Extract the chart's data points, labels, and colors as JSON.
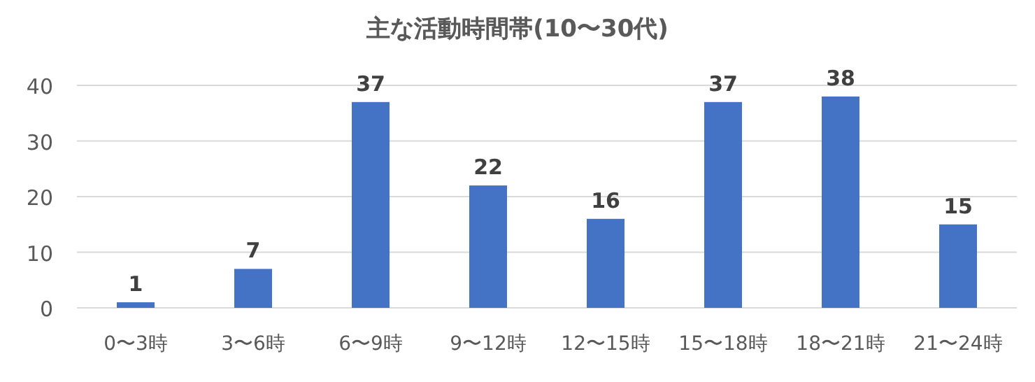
{
  "chart_data": {
    "type": "bar",
    "title": "主な活動時間帯(10〜30代)",
    "categories": [
      "0〜3時",
      "3〜6時",
      "6〜9時",
      "9〜12時",
      "12〜15時",
      "15〜18時",
      "18〜21時",
      "21〜24時"
    ],
    "values": [
      1,
      7,
      37,
      22,
      16,
      37,
      38,
      15
    ],
    "color": "#4472c4",
    "ylim": [
      0,
      40
    ],
    "yticks": [
      0,
      10,
      20,
      30,
      40
    ],
    "grid": "y",
    "data_labels": true
  }
}
